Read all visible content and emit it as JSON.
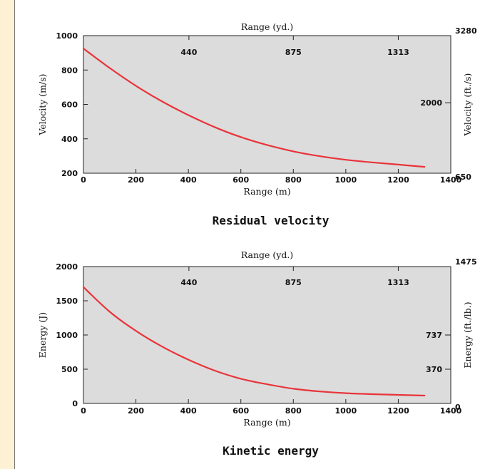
{
  "colors": {
    "page_background": "#fdf1d3",
    "plot_background": "#dcdcdc",
    "curve": "#e8343a"
  },
  "chart_data": [
    {
      "type": "line",
      "title": "Residual velocity",
      "xlabel": "Range (m)",
      "ylabel": "Velocity (m/s)",
      "top_xlabel": "Range (yd.)",
      "right_ylabel": "Velocity (ft./s)",
      "xlim": [
        0,
        1400
      ],
      "ylim": [
        200,
        1000
      ],
      "x_ticks": [
        0,
        200,
        400,
        600,
        800,
        1000,
        1200,
        1400
      ],
      "y_ticks": [
        200,
        400,
        600,
        800,
        1000
      ],
      "top_ticks": [
        {
          "x": 402,
          "label": "440"
        },
        {
          "x": 800,
          "label": "875"
        },
        {
          "x": 1200,
          "label": "1313"
        }
      ],
      "right_ticks": [
        {
          "y": 200,
          "label": "650"
        },
        {
          "y": 610,
          "label": "2000"
        },
        {
          "y": 1000,
          "label": "3280"
        }
      ],
      "grid": false,
      "series": [
        {
          "x": [
            0,
            100,
            200,
            300,
            400,
            500,
            600,
            700,
            800,
            900,
            1000,
            1100,
            1200,
            1300
          ],
          "y": [
            925,
            812,
            708,
            617,
            538,
            468,
            410,
            364,
            327,
            299,
            278,
            263,
            250,
            237
          ]
        }
      ]
    },
    {
      "type": "line",
      "title": "Kinetic energy",
      "xlabel": "Range (m)",
      "ylabel": "Energy (J)",
      "top_xlabel": "Range (yd.)",
      "right_ylabel": "Energy (ft./lb.)",
      "xlim": [
        0,
        1400
      ],
      "ylim": [
        0,
        2000
      ],
      "x_ticks": [
        0,
        200,
        400,
        600,
        800,
        1000,
        1200,
        1400
      ],
      "y_ticks": [
        0,
        500,
        1000,
        1500,
        2000
      ],
      "top_ticks": [
        {
          "x": 402,
          "label": "440"
        },
        {
          "x": 800,
          "label": "875"
        },
        {
          "x": 1200,
          "label": "1313"
        }
      ],
      "right_ticks": [
        {
          "y": 0,
          "label": "0"
        },
        {
          "y": 500,
          "label": "370"
        },
        {
          "y": 1000,
          "label": "737"
        },
        {
          "y": 2000,
          "label": "1475"
        }
      ],
      "grid": false,
      "series": [
        {
          "x": [
            0,
            100,
            200,
            300,
            400,
            500,
            600,
            700,
            800,
            900,
            1000,
            1100,
            1200,
            1300
          ],
          "y": [
            1700,
            1340,
            1060,
            830,
            640,
            480,
            360,
            280,
            215,
            175,
            150,
            135,
            125,
            115
          ]
        }
      ]
    }
  ]
}
